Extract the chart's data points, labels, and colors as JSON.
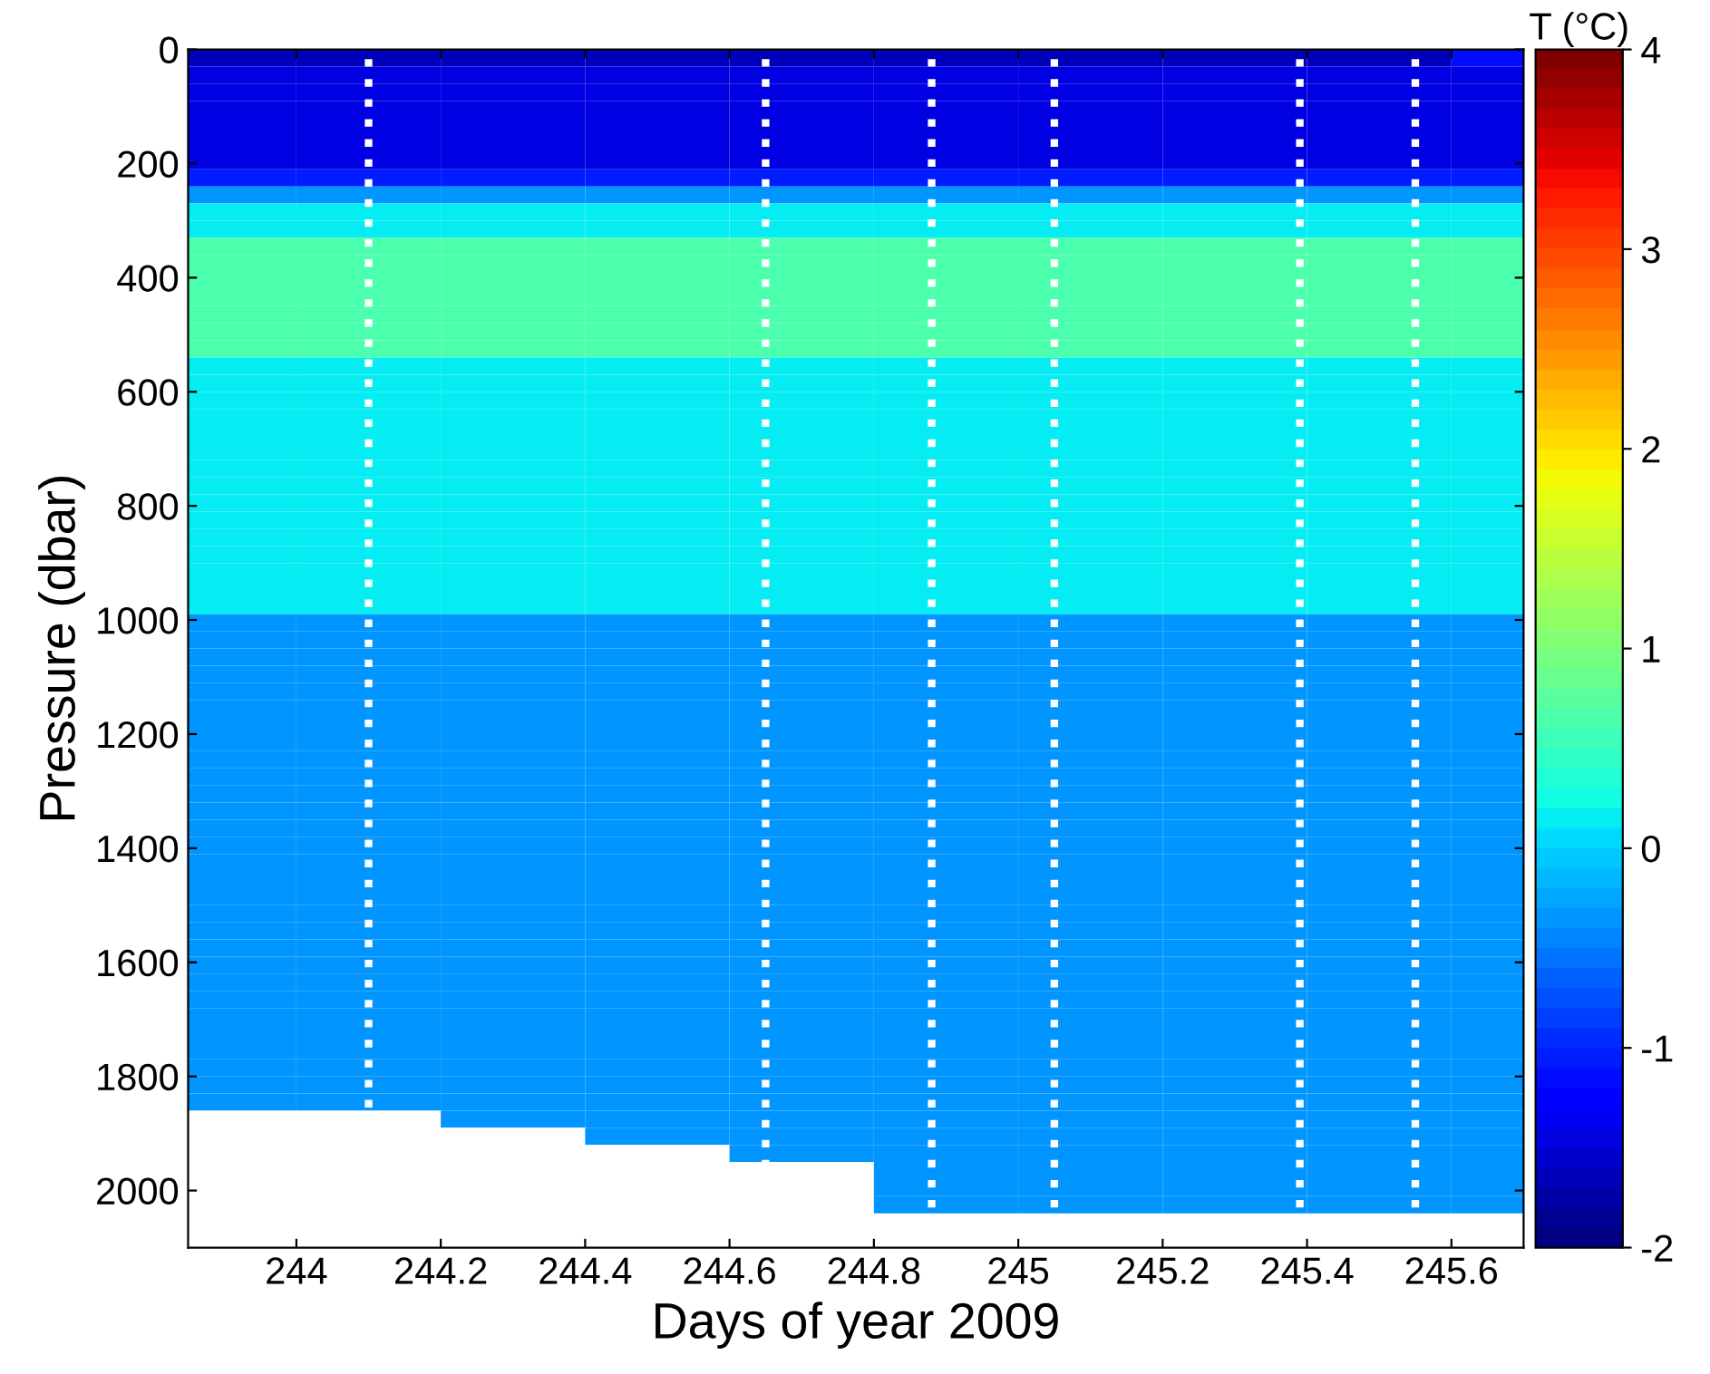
{
  "chart_data": {
    "type": "heatmap",
    "xlabel": "Days of year 2009",
    "ylabel": "Pressure (dbar)",
    "clabel": "T (°C)",
    "x": [
      243.9,
      244.1,
      244.3,
      244.5,
      244.7,
      244.9,
      245.1,
      245.3,
      245.5,
      245.7
    ],
    "y": [
      15,
      45,
      75,
      105,
      135,
      165,
      195,
      225,
      255,
      285,
      315,
      345,
      375,
      405,
      435,
      465,
      495,
      525,
      555,
      585,
      615,
      645,
      675,
      705,
      735,
      765,
      795,
      825,
      855,
      885,
      915,
      945,
      975,
      1005,
      1035,
      1065,
      1095,
      1125,
      1155,
      1185,
      1215,
      1245,
      1275,
      1305,
      1335,
      1365,
      1395,
      1425,
      1455,
      1485,
      1515,
      1545,
      1575,
      1605,
      1635,
      1665,
      1695,
      1725,
      1755,
      1785,
      1815,
      1845,
      1875,
      1905,
      1935,
      1965,
      1995,
      2025
    ],
    "cells": [
      [
        -1.7,
        -1.7,
        -1.7,
        -1.7,
        -1.7,
        -1.7,
        -1.7,
        -1.7,
        -1.7,
        -1.2
      ],
      [
        -1.5,
        -1.5,
        -1.5,
        -1.5,
        -1.5,
        -1.5,
        -1.5,
        -1.5,
        -1.5,
        -1.5
      ],
      [
        -1.5,
        -1.5,
        -1.5,
        -1.5,
        -1.5,
        -1.5,
        -1.5,
        -1.5,
        -1.5,
        -1.5
      ],
      [
        -1.5,
        -1.5,
        -1.5,
        -1.5,
        -1.5,
        -1.5,
        -1.5,
        -1.5,
        -1.5,
        -1.5
      ],
      [
        -1.5,
        -1.5,
        -1.5,
        -1.5,
        -1.5,
        -1.5,
        -1.5,
        -1.5,
        -1.5,
        -1.5
      ],
      [
        -1.5,
        -1.5,
        -1.5,
        -1.5,
        -1.5,
        -1.5,
        -1.5,
        -1.5,
        -1.5,
        -1.5
      ],
      [
        -1.5,
        -1.5,
        -1.5,
        -1.5,
        -1.5,
        -1.5,
        -1.5,
        -1.5,
        -1.5,
        -1.5
      ],
      [
        -1.1,
        -1.1,
        -1.1,
        -1.1,
        -1.1,
        -1.1,
        -1.1,
        -1.1,
        -1.1,
        -1.1
      ],
      [
        -0.4,
        -0.4,
        -0.4,
        -0.4,
        -0.4,
        -0.4,
        -0.4,
        -0.4,
        -0.4,
        -0.4
      ],
      [
        0.1,
        0.1,
        0.1,
        0.1,
        0.1,
        0.1,
        0.1,
        0.1,
        0.1,
        0.1
      ],
      [
        0.1,
        0.1,
        0.1,
        0.1,
        0.1,
        0.1,
        0.1,
        0.1,
        0.1,
        0.1
      ],
      [
        0.6,
        0.6,
        0.6,
        0.6,
        0.6,
        0.6,
        0.6,
        0.6,
        0.6,
        0.6
      ],
      [
        0.6,
        0.6,
        0.6,
        0.6,
        0.6,
        0.6,
        0.6,
        0.6,
        0.6,
        0.6
      ],
      [
        0.6,
        0.6,
        0.6,
        0.6,
        0.6,
        0.6,
        0.6,
        0.6,
        0.6,
        0.6
      ],
      [
        0.6,
        0.6,
        0.6,
        0.6,
        0.6,
        0.6,
        0.6,
        0.6,
        0.6,
        0.6
      ],
      [
        0.6,
        0.6,
        0.6,
        0.6,
        0.6,
        0.6,
        0.6,
        0.6,
        0.6,
        0.6
      ],
      [
        0.6,
        0.6,
        0.6,
        0.6,
        0.6,
        0.6,
        0.6,
        0.6,
        0.6,
        0.6
      ],
      [
        0.6,
        0.6,
        0.6,
        0.6,
        0.6,
        0.6,
        0.6,
        0.6,
        0.6,
        0.6
      ],
      [
        0.1,
        0.1,
        0.1,
        0.1,
        0.1,
        0.1,
        0.1,
        0.1,
        0.1,
        0.1
      ],
      [
        0.1,
        0.1,
        0.1,
        0.1,
        0.1,
        0.1,
        0.1,
        0.1,
        0.1,
        0.1
      ],
      [
        0.1,
        0.1,
        0.1,
        0.1,
        0.1,
        0.1,
        0.1,
        0.1,
        0.1,
        0.1
      ],
      [
        0.1,
        0.1,
        0.1,
        0.1,
        0.1,
        0.1,
        0.1,
        0.1,
        0.1,
        0.1
      ],
      [
        0.1,
        0.1,
        0.1,
        0.1,
        0.1,
        0.1,
        0.1,
        0.1,
        0.1,
        0.1
      ],
      [
        0.1,
        0.1,
        0.1,
        0.1,
        0.1,
        0.1,
        0.1,
        0.1,
        0.1,
        0.1
      ],
      [
        0.1,
        0.1,
        0.1,
        0.1,
        0.1,
        0.1,
        0.1,
        0.1,
        0.1,
        0.1
      ],
      [
        0.1,
        0.1,
        0.1,
        0.1,
        0.1,
        0.1,
        0.1,
        0.1,
        0.1,
        0.1
      ],
      [
        0.1,
        0.1,
        0.1,
        0.1,
        0.1,
        0.1,
        0.1,
        0.1,
        0.1,
        0.1
      ],
      [
        0.1,
        0.1,
        0.1,
        0.1,
        0.1,
        0.1,
        0.1,
        0.1,
        0.1,
        0.1
      ],
      [
        0.1,
        0.1,
        0.1,
        0.1,
        0.1,
        0.1,
        0.1,
        0.1,
        0.1,
        0.1
      ],
      [
        0.1,
        0.1,
        0.1,
        0.1,
        0.1,
        0.1,
        0.1,
        0.1,
        0.1,
        0.1
      ],
      [
        0.1,
        0.1,
        0.1,
        0.1,
        0.1,
        0.1,
        0.1,
        0.1,
        0.1,
        0.1
      ],
      [
        0.1,
        0.1,
        0.1,
        0.1,
        0.1,
        0.1,
        0.1,
        0.1,
        0.1,
        0.1
      ],
      [
        0.1,
        0.1,
        0.1,
        0.1,
        0.1,
        0.1,
        0.1,
        0.1,
        0.1,
        0.1
      ],
      [
        -0.4,
        -0.4,
        -0.4,
        -0.4,
        -0.4,
        -0.4,
        -0.4,
        -0.4,
        -0.4,
        -0.4
      ],
      [
        -0.4,
        -0.4,
        -0.4,
        -0.4,
        -0.4,
        -0.4,
        -0.4,
        -0.4,
        -0.4,
        -0.4
      ],
      [
        -0.4,
        -0.4,
        -0.4,
        -0.4,
        -0.4,
        -0.4,
        -0.4,
        -0.4,
        -0.4,
        -0.4
      ],
      [
        -0.4,
        -0.4,
        -0.4,
        -0.4,
        -0.4,
        -0.4,
        -0.4,
        -0.4,
        -0.4,
        -0.4
      ],
      [
        -0.4,
        -0.4,
        -0.4,
        -0.4,
        -0.4,
        -0.4,
        -0.4,
        -0.4,
        -0.4,
        -0.4
      ],
      [
        -0.4,
        -0.4,
        -0.4,
        -0.4,
        -0.4,
        -0.4,
        -0.4,
        -0.4,
        -0.4,
        -0.4
      ],
      [
        -0.4,
        -0.4,
        -0.4,
        -0.4,
        -0.4,
        -0.4,
        -0.4,
        -0.4,
        -0.4,
        -0.4
      ],
      [
        -0.4,
        -0.4,
        -0.4,
        -0.4,
        -0.4,
        -0.4,
        -0.4,
        -0.4,
        -0.4,
        -0.4
      ],
      [
        -0.4,
        -0.4,
        -0.4,
        -0.4,
        -0.4,
        -0.4,
        -0.4,
        -0.4,
        -0.4,
        -0.4
      ],
      [
        -0.4,
        -0.4,
        -0.4,
        -0.4,
        -0.4,
        -0.4,
        -0.4,
        -0.4,
        -0.4,
        -0.4
      ],
      [
        -0.4,
        -0.4,
        -0.4,
        -0.4,
        -0.4,
        -0.4,
        -0.4,
        -0.4,
        -0.4,
        -0.4
      ],
      [
        -0.4,
        -0.4,
        -0.4,
        -0.4,
        -0.4,
        -0.4,
        -0.4,
        -0.4,
        -0.4,
        -0.4
      ],
      [
        -0.4,
        -0.4,
        -0.4,
        -0.4,
        -0.4,
        -0.4,
        -0.4,
        -0.4,
        -0.4,
        -0.4
      ],
      [
        -0.4,
        -0.4,
        -0.4,
        -0.4,
        -0.4,
        -0.4,
        -0.4,
        -0.4,
        -0.4,
        -0.4
      ],
      [
        -0.4,
        -0.4,
        -0.4,
        -0.4,
        -0.4,
        -0.4,
        -0.4,
        -0.4,
        -0.4,
        -0.4
      ],
      [
        -0.4,
        -0.4,
        -0.4,
        -0.4,
        -0.4,
        -0.4,
        -0.4,
        -0.4,
        -0.4,
        -0.4
      ],
      [
        -0.4,
        -0.4,
        -0.4,
        -0.4,
        -0.4,
        -0.4,
        -0.4,
        -0.4,
        -0.4,
        -0.4
      ],
      [
        -0.4,
        -0.4,
        -0.4,
        -0.4,
        -0.4,
        -0.4,
        -0.4,
        -0.4,
        -0.4,
        -0.4
      ],
      [
        -0.4,
        -0.4,
        -0.4,
        -0.4,
        -0.4,
        -0.4,
        -0.4,
        -0.4,
        -0.4,
        -0.4
      ],
      [
        -0.4,
        -0.4,
        -0.4,
        -0.4,
        -0.4,
        -0.4,
        -0.4,
        -0.4,
        -0.4,
        -0.4
      ],
      [
        -0.4,
        -0.4,
        -0.4,
        -0.4,
        -0.4,
        -0.4,
        -0.4,
        -0.4,
        -0.4,
        -0.4
      ],
      [
        -0.4,
        -0.4,
        -0.4,
        -0.4,
        -0.4,
        -0.4,
        -0.4,
        -0.4,
        -0.4,
        -0.4
      ],
      [
        -0.4,
        -0.4,
        -0.4,
        -0.4,
        -0.4,
        -0.4,
        -0.4,
        -0.4,
        -0.4,
        -0.4
      ],
      [
        -0.4,
        -0.4,
        -0.4,
        -0.4,
        -0.4,
        -0.4,
        -0.4,
        -0.4,
        -0.4,
        -0.4
      ],
      [
        -0.4,
        -0.4,
        -0.4,
        -0.4,
        -0.4,
        -0.4,
        -0.4,
        -0.4,
        -0.4,
        -0.4
      ],
      [
        -0.4,
        -0.4,
        -0.4,
        -0.4,
        -0.4,
        -0.4,
        -0.4,
        -0.4,
        -0.4,
        -0.4
      ],
      [
        -0.4,
        -0.4,
        -0.4,
        -0.4,
        -0.4,
        -0.4,
        -0.4,
        -0.4,
        -0.4,
        -0.4
      ],
      [
        -0.4,
        -0.4,
        -0.4,
        -0.4,
        -0.4,
        -0.4,
        -0.4,
        -0.4,
        -0.4,
        -0.4
      ],
      [
        -0.4,
        -0.4,
        -0.4,
        -0.4,
        -0.4,
        -0.4,
        -0.4,
        -0.4,
        -0.4,
        -0.4
      ],
      [
        null,
        null,
        -0.4,
        -0.4,
        -0.4,
        -0.4,
        -0.4,
        -0.4,
        -0.4,
        -0.4
      ],
      [
        null,
        null,
        null,
        -0.4,
        -0.4,
        -0.4,
        -0.4,
        -0.4,
        -0.4,
        -0.4
      ],
      [
        null,
        null,
        null,
        null,
        -0.4,
        -0.4,
        -0.4,
        -0.4,
        -0.4,
        -0.4
      ],
      [
        null,
        null,
        null,
        null,
        null,
        -0.4,
        -0.4,
        -0.4,
        -0.4,
        -0.4
      ],
      [
        null,
        null,
        null,
        null,
        null,
        -0.4,
        -0.4,
        -0.4,
        -0.4,
        -0.4
      ],
      [
        null,
        null,
        null,
        null,
        null,
        -0.4,
        -0.4,
        -0.4,
        -0.4,
        -0.4
      ]
    ],
    "clim": [
      -2,
      4
    ],
    "cticks": [
      -2,
      -1,
      0,
      1,
      2,
      3,
      4
    ],
    "xlim": [
      243.85,
      245.7
    ],
    "ylim": [
      2100,
      0
    ],
    "xticks": [
      244,
      {
        "value": 244.2,
        "label": "244.2"
      },
      {
        "value": 244.4,
        "label": "244.4"
      },
      {
        "value": 244.6,
        "label": "244.6"
      },
      {
        "value": 244.8,
        "label": "244.8"
      },
      245,
      {
        "value": 245.2,
        "label": "245.2"
      },
      {
        "value": 245.4,
        "label": "245.4"
      },
      {
        "value": 245.6,
        "label": "245.6"
      }
    ],
    "yticks": [
      0,
      200,
      400,
      600,
      800,
      1000,
      1200,
      1400,
      1600,
      1800,
      2000
    ],
    "ref_lines": [
      {
        "axis": "x",
        "value": 244.1,
        "color": "#ffffff",
        "line_style": "dotted"
      },
      {
        "axis": "x",
        "value": 244.65,
        "color": "#ffffff",
        "line_style": "dotted"
      },
      {
        "axis": "x",
        "value": 244.88,
        "color": "#ffffff",
        "line_style": "dotted"
      },
      {
        "axis": "x",
        "value": 245.05,
        "color": "#ffffff",
        "line_style": "dotted"
      },
      {
        "axis": "x",
        "value": 245.39,
        "color": "#ffffff",
        "line_style": "dotted"
      },
      {
        "axis": "x",
        "value": 245.55,
        "color": "#ffffff",
        "line_style": "dotted"
      }
    ],
    "grid": false
  }
}
